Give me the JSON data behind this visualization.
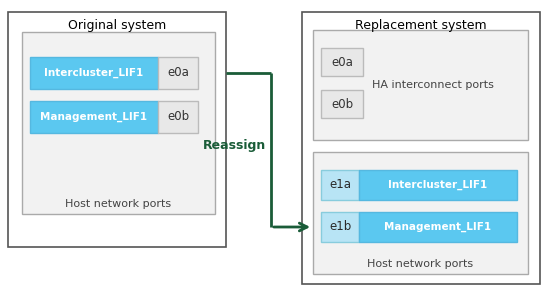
{
  "bg_color": "#ffffff",
  "lif_blue": "#5bc8f0",
  "lif_blue_light": "#b8e4f5",
  "reassign_color": "#1a5c38",
  "orig_title": "Original system",
  "repl_title": "Replacement system",
  "lif1": "Intercluster_LIF1",
  "lif2": "Management_LIF1",
  "orig_port1": "e0a",
  "orig_port2": "e0b",
  "ha_port1": "e0a",
  "ha_port2": "e0b",
  "ha_label": "HA interconnect ports",
  "host_port1": "e1a",
  "host_port2": "e1b",
  "host_label": "Host network ports",
  "orig_host_label": "Host network ports",
  "reassign_label": "Reassign"
}
